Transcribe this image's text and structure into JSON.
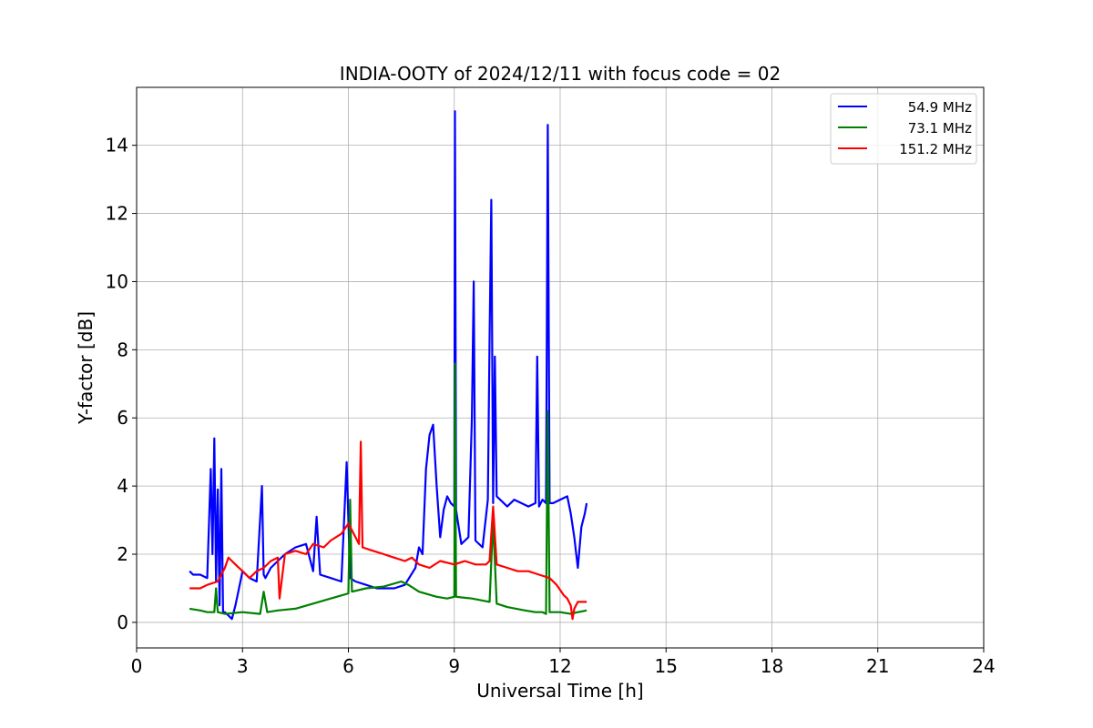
{
  "chart_data": {
    "type": "line",
    "title": "INDIA-OOTY of 2024/12/11 with focus code = 02",
    "xlabel": "Universal Time [h]",
    "ylabel": "Y-factor [dB]",
    "xlim": [
      0,
      24
    ],
    "ylim": [
      -0.75,
      15.7
    ],
    "x_ticks": [
      0,
      3,
      6,
      9,
      12,
      15,
      18,
      21,
      24
    ],
    "y_ticks": [
      0,
      2,
      4,
      6,
      8,
      10,
      12,
      14
    ],
    "grid": true,
    "legend_position": "top-right",
    "series": [
      {
        "name": "54.9 MHz",
        "color": "#0000ff",
        "x": [
          1.5,
          1.6,
          1.8,
          2.0,
          2.1,
          2.15,
          2.2,
          2.25,
          2.3,
          2.35,
          2.4,
          2.45,
          2.5,
          2.6,
          2.7,
          2.8,
          2.9,
          3.0,
          3.2,
          3.4,
          3.55,
          3.6,
          3.65,
          3.8,
          4.0,
          4.2,
          4.5,
          4.8,
          5.0,
          5.1,
          5.2,
          5.5,
          5.8,
          5.95,
          6.0,
          6.05,
          6.2,
          6.5,
          6.8,
          7.0,
          7.3,
          7.6,
          7.9,
          8.0,
          8.1,
          8.2,
          8.3,
          8.4,
          8.5,
          8.6,
          8.7,
          8.8,
          8.9,
          9.0,
          9.02,
          9.05,
          9.2,
          9.4,
          9.5,
          9.55,
          9.6,
          9.8,
          9.95,
          10.0,
          10.05,
          10.1,
          10.15,
          10.2,
          10.3,
          10.5,
          10.7,
          10.9,
          11.1,
          11.3,
          11.35,
          11.4,
          11.5,
          11.6,
          11.65,
          11.7,
          11.8,
          12.0,
          12.2,
          12.3,
          12.4,
          12.5,
          12.6,
          12.7,
          12.75
        ],
        "y": [
          1.5,
          1.4,
          1.4,
          1.3,
          4.5,
          2.0,
          5.4,
          1.2,
          3.9,
          0.5,
          4.5,
          0.3,
          0.3,
          0.2,
          0.1,
          0.5,
          1.0,
          1.5,
          1.3,
          1.2,
          4.0,
          1.4,
          1.3,
          1.6,
          1.8,
          2.0,
          2.2,
          2.3,
          1.5,
          3.1,
          1.4,
          1.3,
          1.2,
          4.7,
          3.0,
          1.3,
          1.2,
          1.1,
          1.0,
          1.0,
          1.0,
          1.1,
          1.6,
          2.2,
          2.0,
          4.5,
          5.5,
          5.8,
          4.0,
          2.5,
          3.3,
          3.7,
          3.5,
          3.4,
          15.0,
          3.3,
          2.3,
          2.5,
          6.0,
          10.0,
          2.4,
          2.2,
          3.6,
          8.3,
          12.4,
          3.5,
          7.8,
          3.7,
          3.6,
          3.4,
          3.6,
          3.5,
          3.4,
          3.5,
          7.8,
          3.4,
          3.6,
          3.5,
          14.6,
          3.5,
          3.5,
          3.6,
          3.7,
          3.2,
          2.5,
          1.6,
          2.8,
          3.2,
          3.5
        ]
      },
      {
        "name": "73.1 MHz",
        "color": "#008000",
        "x": [
          1.5,
          1.8,
          2.0,
          2.2,
          2.25,
          2.3,
          2.5,
          3.0,
          3.5,
          3.6,
          3.7,
          4.0,
          4.5,
          5.0,
          5.5,
          6.0,
          6.05,
          6.1,
          6.5,
          7.0,
          7.5,
          7.7,
          8.0,
          8.5,
          8.8,
          9.0,
          9.02,
          9.05,
          9.5,
          10.0,
          10.1,
          10.2,
          10.5,
          11.0,
          11.3,
          11.5,
          11.6,
          11.65,
          11.7,
          12.0,
          12.3,
          12.5,
          12.75
        ],
        "y": [
          0.4,
          0.35,
          0.3,
          0.3,
          1.0,
          0.3,
          0.25,
          0.3,
          0.25,
          0.9,
          0.3,
          0.35,
          0.4,
          0.55,
          0.7,
          0.85,
          3.6,
          0.9,
          1.0,
          1.05,
          1.2,
          1.1,
          0.9,
          0.75,
          0.7,
          0.75,
          7.6,
          0.75,
          0.7,
          0.6,
          3.0,
          0.55,
          0.45,
          0.35,
          0.3,
          0.3,
          0.25,
          6.2,
          0.3,
          0.3,
          0.25,
          0.3,
          0.35
        ]
      },
      {
        "name": "151.2 MHz",
        "color": "#ff0000",
        "x": [
          1.5,
          1.8,
          2.0,
          2.3,
          2.5,
          2.6,
          2.8,
          3.0,
          3.2,
          3.4,
          3.6,
          3.8,
          4.0,
          4.05,
          4.2,
          4.5,
          4.8,
          5.0,
          5.3,
          5.5,
          5.8,
          6.0,
          6.2,
          6.3,
          6.35,
          6.4,
          6.7,
          7.0,
          7.3,
          7.6,
          7.8,
          8.0,
          8.3,
          8.6,
          9.0,
          9.3,
          9.6,
          9.9,
          10.0,
          10.1,
          10.2,
          10.5,
          10.8,
          11.1,
          11.4,
          11.7,
          11.9,
          12.1,
          12.2,
          12.3,
          12.35,
          12.4,
          12.5,
          12.75
        ],
        "y": [
          1.0,
          1.0,
          1.1,
          1.2,
          1.6,
          1.9,
          1.7,
          1.5,
          1.3,
          1.5,
          1.6,
          1.8,
          1.9,
          0.7,
          2.0,
          2.1,
          2.0,
          2.3,
          2.2,
          2.4,
          2.6,
          2.9,
          2.5,
          2.3,
          5.3,
          2.2,
          2.1,
          2.0,
          1.9,
          1.8,
          1.9,
          1.7,
          1.6,
          1.8,
          1.7,
          1.8,
          1.7,
          1.7,
          1.8,
          3.4,
          1.7,
          1.6,
          1.5,
          1.5,
          1.4,
          1.3,
          1.1,
          0.8,
          0.7,
          0.5,
          0.1,
          0.4,
          0.6,
          0.6
        ]
      }
    ]
  }
}
